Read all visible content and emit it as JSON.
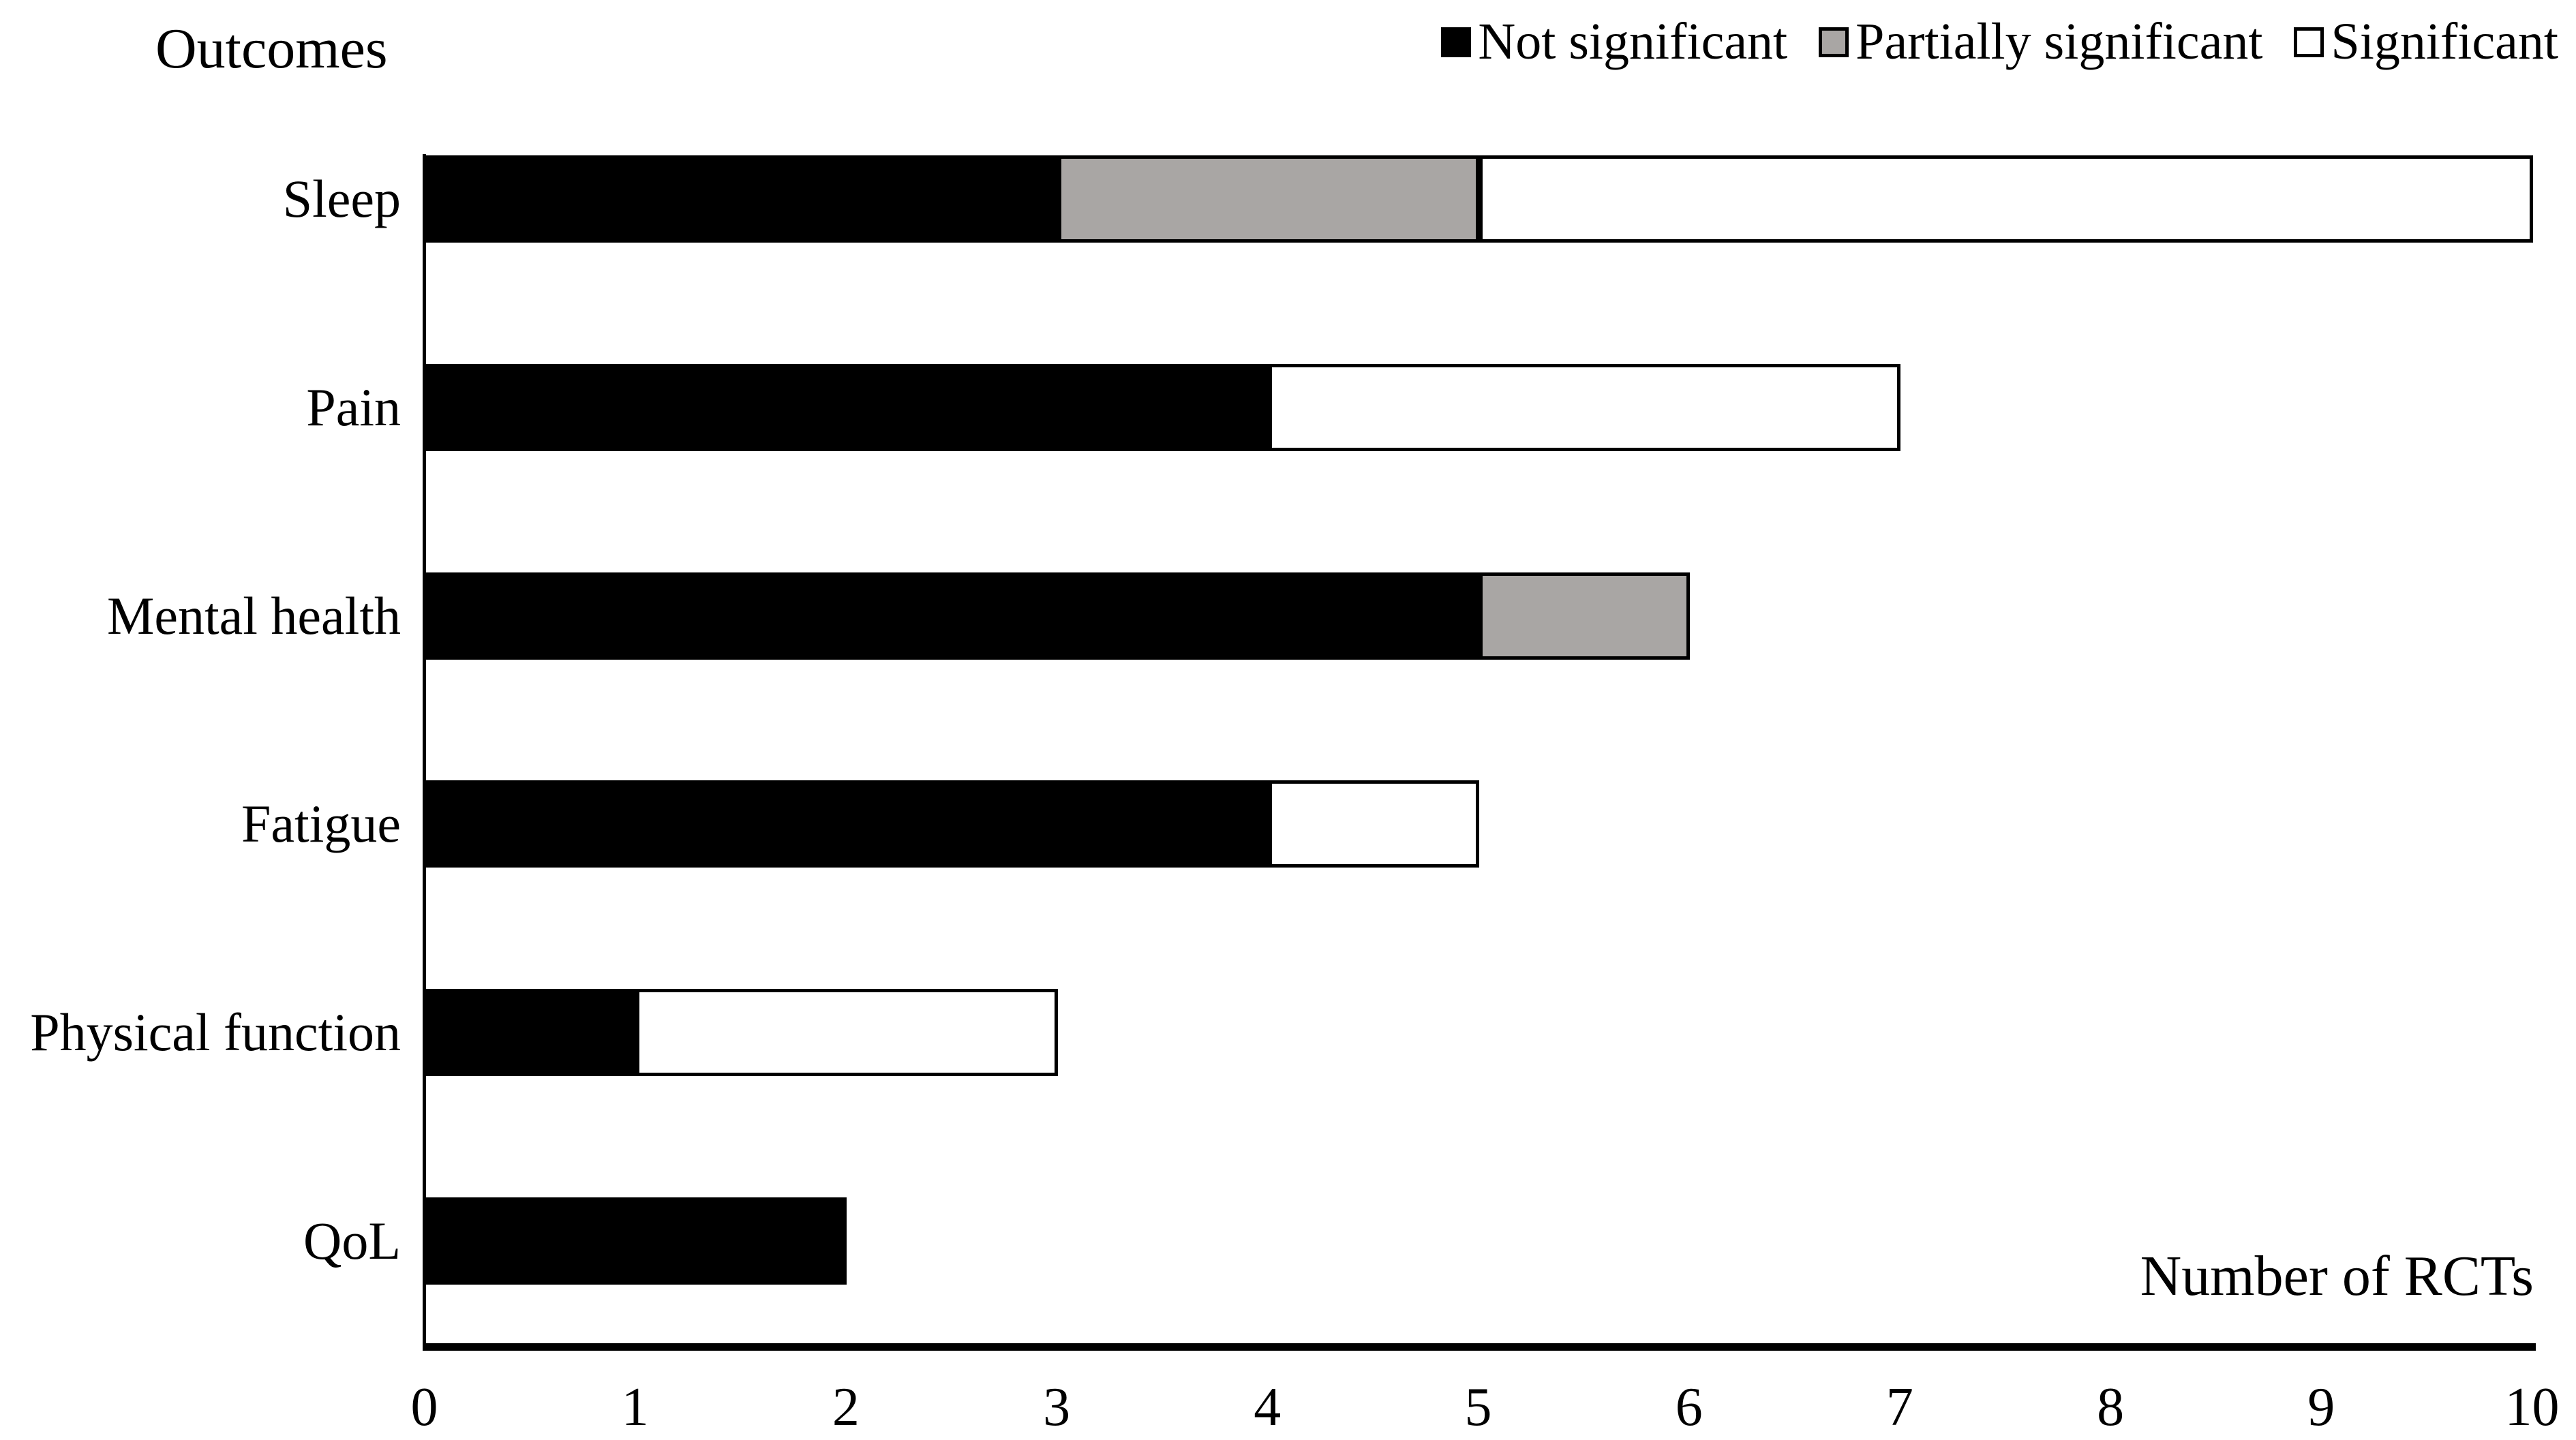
{
  "chart_data": {
    "type": "bar",
    "orientation": "horizontal",
    "stacked": true,
    "title": "Outcomes",
    "xlabel": "Number of RCTs",
    "categories": [
      "Sleep",
      "Pain",
      "Mental health",
      "Fatigue",
      "Physical function",
      "QoL"
    ],
    "series": [
      {
        "name": "Not significant",
        "color": "#000000",
        "values": [
          3,
          4,
          5,
          4,
          1,
          2
        ]
      },
      {
        "name": "Partially significant",
        "color": "#a9a6a4",
        "values": [
          2,
          0,
          1,
          0,
          0,
          0
        ]
      },
      {
        "name": "Significant",
        "color": "#ffffff",
        "values": [
          5,
          3,
          0,
          1,
          2,
          0
        ]
      }
    ],
    "totals": [
      10,
      7,
      6,
      5,
      3,
      2
    ],
    "xlim": [
      0,
      10
    ],
    "xticks": [
      0,
      1,
      2,
      3,
      4,
      5,
      6,
      7,
      8,
      9,
      10
    ],
    "grid": false,
    "legend_position": "top-right",
    "colors": {
      "bar_outline": "#000000",
      "axis": "#000000",
      "background": "#ffffff",
      "gray_fill": "#a9a6a4"
    }
  }
}
